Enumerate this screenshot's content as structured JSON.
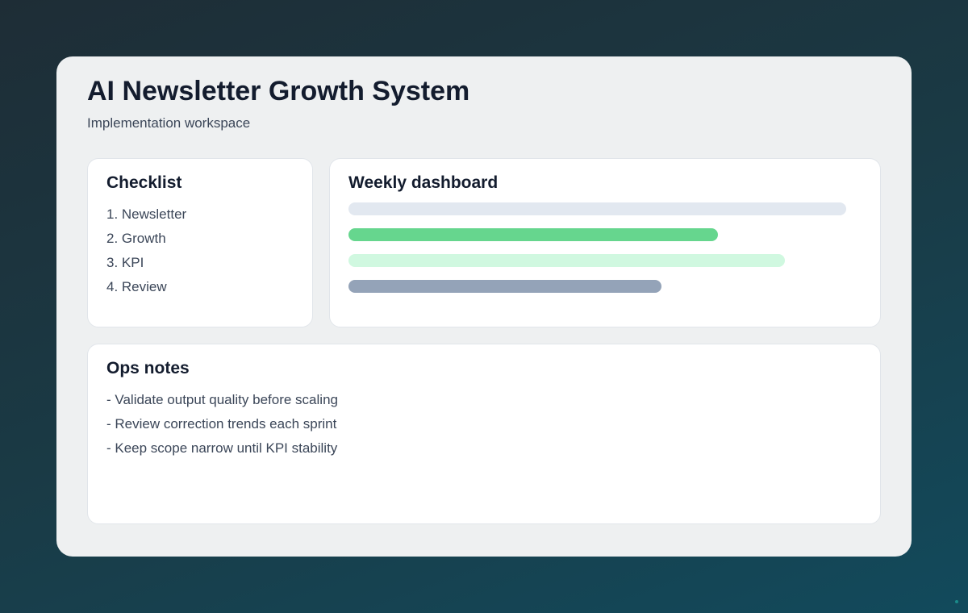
{
  "header": {
    "title": "AI Newsletter Growth System",
    "subtitle": "Implementation workspace"
  },
  "checklist": {
    "title": "Checklist",
    "items": [
      "1. Newsletter",
      "2. Growth",
      "3. KPI",
      "4. Review"
    ]
  },
  "dashboard": {
    "title": "Weekly dashboard",
    "bars": [
      {
        "percent": 97,
        "color": "#e2e8f0"
      },
      {
        "percent": 72,
        "color": "#66d68e"
      },
      {
        "percent": 85,
        "color": "#d0f8e0"
      },
      {
        "percent": 61,
        "color": "#94a3b8"
      }
    ]
  },
  "notes": {
    "title": "Ops notes",
    "items": [
      "- Validate output quality before scaling",
      "- Review correction trends each sprint",
      "- Keep scope narrow until KPI stability"
    ]
  }
}
